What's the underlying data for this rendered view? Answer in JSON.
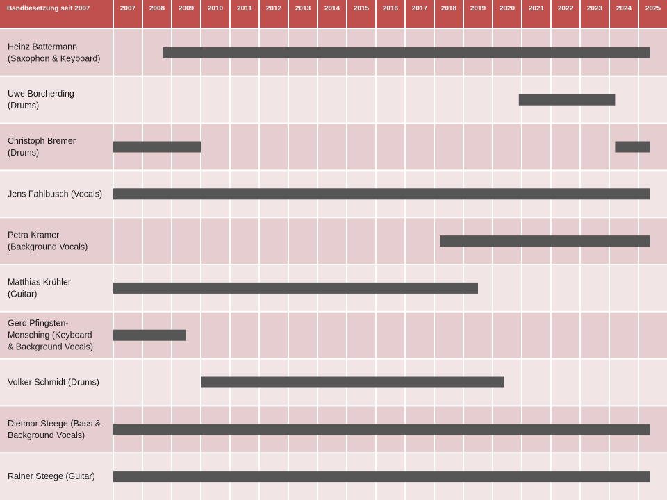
{
  "chart_data": {
    "type": "gantt",
    "title": "Bandbesetzung seit 2007",
    "years": [
      "2007",
      "2008",
      "2009",
      "2010",
      "2011",
      "2012",
      "2013",
      "2014",
      "2015",
      "2016",
      "2017",
      "2018",
      "2019",
      "2020",
      "2021",
      "2022",
      "2023",
      "2024",
      "2025"
    ],
    "colors": {
      "header": "#c0504d",
      "row_dark": "#e6cdcf",
      "row_light": "#f2e5e6",
      "bar": "#565656"
    },
    "rows": [
      {
        "name": [
          "Heinz Battermann",
          "(Saxophon & Keyboard)"
        ],
        "bars": [
          [
            2008.7,
            2025.4
          ]
        ]
      },
      {
        "name": [
          "Uwe Borcherding",
          "(Drums)"
        ],
        "bars": [
          [
            2020.9,
            2024.2
          ]
        ]
      },
      {
        "name": [
          "Christoph Bremer",
          "(Drums)"
        ],
        "bars": [
          [
            2007.0,
            2010.0
          ],
          [
            2024.2,
            2025.4
          ]
        ]
      },
      {
        "name": [
          "Jens Fahlbusch (Vocals)"
        ],
        "bars": [
          [
            2007.0,
            2025.4
          ]
        ]
      },
      {
        "name": [
          "Petra Kramer",
          "(Background Vocals)"
        ],
        "bars": [
          [
            2018.2,
            2025.4
          ]
        ]
      },
      {
        "name": [
          "Matthias Krühler",
          "(Guitar)"
        ],
        "bars": [
          [
            2007.0,
            2019.5
          ]
        ]
      },
      {
        "name": [
          "Gerd Pfingsten-",
          "Mensching (Keyboard",
          "& Background Vocals)"
        ],
        "bars": [
          [
            2007.0,
            2009.5
          ]
        ]
      },
      {
        "name": [
          "Volker Schmidt (Drums)"
        ],
        "bars": [
          [
            2010.0,
            2020.4
          ]
        ]
      },
      {
        "name": [
          "Dietmar Steege (Bass &",
          "Background Vocals)"
        ],
        "bars": [
          [
            2007.0,
            2025.4
          ]
        ]
      },
      {
        "name": [
          "Rainer Steege (Guitar)"
        ],
        "bars": [
          [
            2007.0,
            2025.4
          ]
        ]
      }
    ]
  }
}
